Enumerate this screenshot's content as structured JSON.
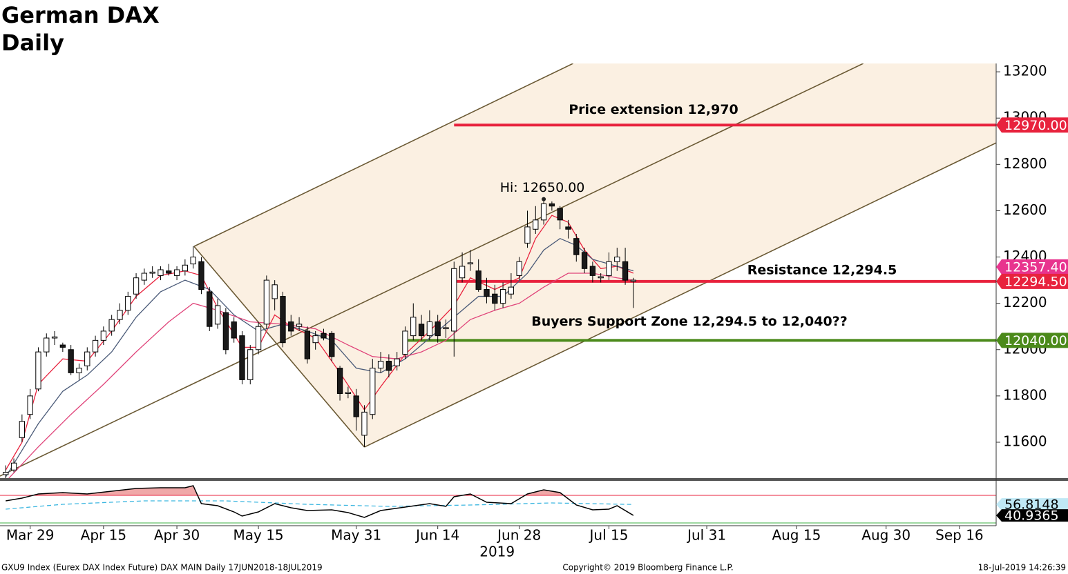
{
  "chart_data": {
    "type": "candlestick",
    "title": "German DAX",
    "subtitle": "Daily",
    "year_label": "2019",
    "footer_left": "GXU9 Index (Eurex DAX Index Future) DAX MAIN  Daily 17JUN2018-18JUL2019",
    "footer_center": "Copyright© 2019 Bloomberg Finance L.P.",
    "footer_right": "18-Jul-2019 14:26:39",
    "xlim": [
      -2.7,
      119.5
    ],
    "ylim": [
      11445,
      13236
    ],
    "yticks": [
      11600,
      11800,
      12000,
      12200,
      12400,
      12600,
      12800,
      13000,
      13200
    ],
    "xticks": [
      {
        "value": 1,
        "label": "Mar 29"
      },
      {
        "value": 10,
        "label": "Apr 15"
      },
      {
        "value": 19,
        "label": "Apr 30"
      },
      {
        "value": 29,
        "label": "May 15"
      },
      {
        "value": 41,
        "label": "May 31"
      },
      {
        "value": 51,
        "label": "Jun 14"
      },
      {
        "value": 61,
        "label": "Jun 28"
      },
      {
        "value": 72,
        "label": "Jul 15"
      },
      {
        "value": 84,
        "label": "Jul 31"
      },
      {
        "value": 95,
        "label": "Aug 15"
      },
      {
        "value": 106,
        "label": "Aug 30"
      },
      {
        "value": 115,
        "label": "Sep 16"
      }
    ],
    "x": [
      -2,
      -1,
      0,
      1,
      2,
      3,
      4,
      5,
      6,
      7,
      8,
      9,
      10,
      11,
      12,
      13,
      14,
      15,
      16,
      17,
      18,
      19,
      20,
      21,
      22,
      23,
      24,
      25,
      26,
      27,
      28,
      29,
      30,
      31,
      32,
      33,
      34,
      35,
      36,
      37,
      38,
      39,
      40,
      41,
      42,
      43,
      44,
      45,
      46,
      47,
      48,
      49,
      50,
      51,
      52,
      53,
      54,
      55,
      56,
      57,
      58,
      59,
      60,
      61,
      62,
      63,
      64,
      65,
      66,
      67,
      68,
      69,
      70,
      71,
      72,
      73,
      74,
      75
    ],
    "ohlc": [
      [
        11460,
        11500,
        11440,
        11470
      ],
      [
        11480,
        11530,
        11470,
        11510
      ],
      [
        11620,
        11720,
        11600,
        11690
      ],
      [
        11720,
        11830,
        11700,
        11800
      ],
      [
        11830,
        12010,
        11820,
        11990
      ],
      [
        11990,
        12070,
        11970,
        12050
      ],
      [
        12050,
        12080,
        12020,
        12055
      ],
      [
        12020,
        12030,
        11990,
        12010
      ],
      [
        12000,
        12020,
        11890,
        11900
      ],
      [
        11900,
        11940,
        11870,
        11920
      ],
      [
        11930,
        12010,
        11910,
        11990
      ],
      [
        11990,
        12060,
        11970,
        12040
      ],
      [
        12040,
        12100,
        12020,
        12080
      ],
      [
        12080,
        12150,
        12060,
        12130
      ],
      [
        12130,
        12200,
        12110,
        12170
      ],
      [
        12170,
        12250,
        12150,
        12230
      ],
      [
        12240,
        12330,
        12220,
        12310
      ],
      [
        12300,
        12350,
        12280,
        12330
      ],
      [
        12330,
        12360,
        12310,
        12335
      ],
      [
        12320,
        12360,
        12300,
        12345
      ],
      [
        12340,
        12370,
        12320,
        12330
      ],
      [
        12320,
        12360,
        12300,
        12345
      ],
      [
        12340,
        12390,
        12320,
        12365
      ],
      [
        12370,
        12446,
        12350,
        12400
      ],
      [
        12380,
        12400,
        12240,
        12260
      ],
      [
        12250,
        12270,
        12080,
        12100
      ],
      [
        12110,
        12220,
        12090,
        12190
      ],
      [
        12160,
        12180,
        11980,
        12000
      ],
      [
        12120,
        12140,
        12030,
        12050
      ],
      [
        12060,
        12080,
        11850,
        11870
      ],
      [
        11870,
        12020,
        11850,
        12000
      ],
      [
        12000,
        12120,
        11980,
        12100
      ],
      [
        12110,
        12320,
        12090,
        12300
      ],
      [
        12220,
        12300,
        12170,
        12280
      ],
      [
        12230,
        12250,
        12010,
        12030
      ],
      [
        12120,
        12150,
        12060,
        12080
      ],
      [
        12100,
        12140,
        12080,
        12110
      ],
      [
        12080,
        12100,
        11940,
        11960
      ],
      [
        12030,
        12080,
        12000,
        12060
      ],
      [
        12070,
        12090,
        12040,
        12050
      ],
      [
        12070,
        12080,
        11950,
        11970
      ],
      [
        11920,
        11930,
        11780,
        11810
      ],
      [
        11810,
        11840,
        11790,
        11815
      ],
      [
        11800,
        11830,
        11650,
        11710
      ],
      [
        11630,
        11760,
        11579,
        11730
      ],
      [
        11720,
        11960,
        11700,
        11920
      ],
      [
        11920,
        11990,
        11900,
        11950
      ],
      [
        11950,
        11980,
        11880,
        11910
      ],
      [
        11930,
        11990,
        11910,
        11960
      ],
      [
        11980,
        12100,
        11960,
        12080
      ],
      [
        12060,
        12200,
        12040,
        12140
      ],
      [
        12110,
        12150,
        12040,
        12060
      ],
      [
        12060,
        12170,
        12040,
        12120
      ],
      [
        12120,
        12150,
        12030,
        12060
      ],
      [
        12090,
        12130,
        12050,
        12095
      ],
      [
        12080,
        12380,
        11970,
        12350
      ],
      [
        12310,
        12420,
        12290,
        12360
      ],
      [
        12370,
        12430,
        12340,
        12375
      ],
      [
        12340,
        12390,
        12250,
        12260
      ],
      [
        12260,
        12310,
        12200,
        12230
      ],
      [
        12240,
        12280,
        12170,
        12200
      ],
      [
        12200,
        12290,
        12180,
        12260
      ],
      [
        12240,
        12330,
        12220,
        12270
      ],
      [
        12320,
        12400,
        12300,
        12380
      ],
      [
        12460,
        12600,
        12440,
        12530
      ],
      [
        12520,
        12620,
        12500,
        12560
      ],
      [
        12560,
        12650,
        12540,
        12630
      ],
      [
        12630,
        12640,
        12600,
        12620
      ],
      [
        12610,
        12620,
        12520,
        12560
      ],
      [
        12530,
        12560,
        12480,
        12520
      ],
      [
        12480,
        12500,
        12380,
        12410
      ],
      [
        12420,
        12440,
        12330,
        12350
      ],
      [
        12360,
        12380,
        12290,
        12320
      ],
      [
        12310,
        12330,
        12290,
        12315
      ],
      [
        12320,
        12420,
        12300,
        12380
      ],
      [
        12380,
        12440,
        12340,
        12400
      ],
      [
        12380,
        12440,
        12280,
        12300
      ],
      [
        12295,
        12310,
        12180,
        12300
      ]
    ],
    "moving_averages": [
      {
        "color": "#e8223d",
        "x": [
          -2,
          0,
          2,
          5,
          8,
          11,
          14,
          17,
          20,
          22,
          24,
          27,
          29,
          31,
          33,
          36,
          39,
          42,
          44,
          47,
          50,
          53,
          55,
          58,
          61,
          63,
          65,
          67,
          69,
          71,
          73,
          75
        ],
        "values": [
          11480,
          11600,
          11850,
          11960,
          11950,
          12080,
          12230,
          12320,
          12340,
          12320,
          12180,
          12010,
          12010,
          12150,
          12100,
          12050,
          11900,
          11740,
          11840,
          11980,
          12080,
          12190,
          12310,
          12260,
          12310,
          12480,
          12580,
          12550,
          12430,
          12350,
          12360,
          12330
        ]
      },
      {
        "color": "#4a5a78",
        "x": [
          -2,
          2,
          5,
          8,
          11,
          14,
          17,
          20,
          23,
          26,
          29,
          32,
          35,
          38,
          41,
          44,
          47,
          50,
          53,
          56,
          59,
          62,
          64,
          66,
          68,
          70,
          72,
          75
        ],
        "values": [
          11450,
          11680,
          11820,
          11890,
          11990,
          12140,
          12250,
          12300,
          12260,
          12150,
          12080,
          12110,
          12080,
          12040,
          11920,
          11900,
          11960,
          12050,
          12140,
          12230,
          12230,
          12330,
          12430,
          12480,
          12450,
          12390,
          12370,
          12340
        ]
      },
      {
        "color": "#e0447a",
        "x": [
          -2,
          2,
          6,
          10,
          14,
          18,
          21,
          24,
          28,
          32,
          36,
          40,
          43,
          46,
          49,
          52,
          55,
          58,
          61,
          64,
          67,
          70,
          73,
          75
        ],
        "values": [
          11430,
          11580,
          11720,
          11850,
          11990,
          12120,
          12200,
          12170,
          12120,
          12110,
          12090,
          12020,
          11970,
          11960,
          11990,
          12040,
          12130,
          12170,
          12200,
          12270,
          12330,
          12330,
          12310,
          12300
        ]
      }
    ],
    "trend_lines": [
      [
        [
          21.1,
          12446
        ],
        [
          67.6,
          13236
        ]
      ],
      [
        [
          -2.7,
          11454
        ],
        [
          103.2,
          13236
        ]
      ],
      [
        [
          42.0,
          11579
        ],
        [
          119.5,
          12893
        ]
      ],
      [
        [
          21.1,
          12446
        ],
        [
          42.0,
          11579
        ]
      ]
    ],
    "channel_color": "#fbf0e2",
    "line_color": "#6b5a35",
    "levels": [
      {
        "text": "Price extension 12,970",
        "value": 12970,
        "x_start": 53,
        "color": "#e8223d"
      },
      {
        "text": "Resistance 12,294.5",
        "value": 12294.5,
        "x_start": 53,
        "color": "#e8223d"
      },
      {
        "text": "Buyers Support Zone 12,294.5 to 12,040??",
        "value": 12040,
        "x_start": 47,
        "color": "#4b8a1a"
      }
    ],
    "price_labels": [
      {
        "value": 12970,
        "label": "12970.00",
        "color": "#e8223d"
      },
      {
        "value": 12357.4,
        "label": "12357.40",
        "color": "#e8348e"
      },
      {
        "value": 12294.5,
        "label": "12294.50",
        "color": "#e8223d"
      },
      {
        "value": 12040,
        "label": "12040.00",
        "color": "#4b8a1a"
      }
    ],
    "hi": {
      "x": 64,
      "value": 12650,
      "label": "Hi: 12650.00"
    },
    "rsi": {
      "ylim": [
        26,
        91
      ],
      "levels": [
        {
          "value": 70,
          "color": "#e8223d"
        },
        {
          "value": 30,
          "color": "#3cb043"
        }
      ],
      "line": {
        "color": "#000000",
        "x": [
          -2,
          0,
          2,
          5,
          8,
          11,
          14,
          17,
          20,
          21,
          22,
          24,
          26,
          27,
          29,
          31,
          33,
          35,
          38,
          40,
          42,
          44,
          47,
          50,
          52,
          53,
          55,
          57,
          60,
          62,
          64,
          66,
          68,
          70,
          72,
          73,
          75
        ],
        "values": [
          62,
          66,
          72,
          74,
          72,
          76,
          80,
          81,
          81,
          84,
          58,
          55,
          46,
          40,
          46,
          58,
          52,
          48,
          49,
          45,
          38,
          48,
          53,
          58,
          54,
          68,
          72,
          60,
          58,
          72,
          78,
          74,
          56,
          49,
          50,
          55,
          40.9365
        ]
      },
      "signal": {
        "color": "#3bb6e0",
        "x": [
          -2,
          5,
          15,
          25,
          35,
          45,
          55,
          65,
          75
        ],
        "values": [
          50,
          57,
          62,
          62,
          57,
          54,
          56,
          59,
          56.8148
        ]
      },
      "fill_color": "#f0a8a8",
      "value_labels": [
        {
          "value": 56.8148,
          "label": "56.8148",
          "color": "#bfe8f5",
          "text_color": "#000000"
        },
        {
          "value": 40.9365,
          "label": "40.9365",
          "color": "#000000",
          "text_color": "#ffffff"
        }
      ]
    }
  }
}
